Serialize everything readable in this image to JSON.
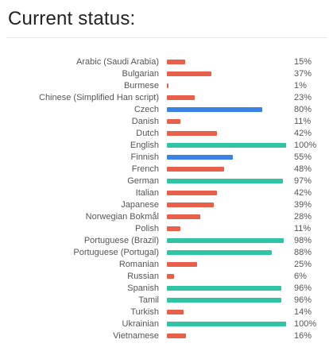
{
  "status": {
    "title": "Current status:",
    "colors": {
      "low": "#e8604a",
      "mid": "#3b82e6",
      "high": "#2ec4a4"
    },
    "languages": [
      {
        "name": "Arabic (Saudi Arabia)",
        "percent": 15,
        "label": "15%"
      },
      {
        "name": "Bulgarian",
        "percent": 37,
        "label": "37%"
      },
      {
        "name": "Burmese",
        "percent": 1,
        "label": "1%"
      },
      {
        "name": "Chinese (Simplified Han script)",
        "percent": 23,
        "label": "23%"
      },
      {
        "name": "Czech",
        "percent": 80,
        "label": "80%"
      },
      {
        "name": "Danish",
        "percent": 11,
        "label": "11%"
      },
      {
        "name": "Dutch",
        "percent": 42,
        "label": "42%"
      },
      {
        "name": "English",
        "percent": 100,
        "label": "100%"
      },
      {
        "name": "Finnish",
        "percent": 55,
        "label": "55%"
      },
      {
        "name": "French",
        "percent": 48,
        "label": "48%"
      },
      {
        "name": "German",
        "percent": 97,
        "label": "97%"
      },
      {
        "name": "Italian",
        "percent": 42,
        "label": "42%"
      },
      {
        "name": "Japanese",
        "percent": 39,
        "label": "39%"
      },
      {
        "name": "Norwegian Bokmål",
        "percent": 28,
        "label": "28%"
      },
      {
        "name": "Polish",
        "percent": 11,
        "label": "11%"
      },
      {
        "name": "Portuguese (Brazil)",
        "percent": 98,
        "label": "98%"
      },
      {
        "name": "Portuguese (Portugal)",
        "percent": 88,
        "label": "88%"
      },
      {
        "name": "Romanian",
        "percent": 25,
        "label": "25%"
      },
      {
        "name": "Russian",
        "percent": 6,
        "label": "6%"
      },
      {
        "name": "Spanish",
        "percent": 96,
        "label": "96%"
      },
      {
        "name": "Tamil",
        "percent": 96,
        "label": "96%"
      },
      {
        "name": "Turkish",
        "percent": 14,
        "label": "14%"
      },
      {
        "name": "Ukrainian",
        "percent": 100,
        "label": "100%"
      },
      {
        "name": "Vietnamese",
        "percent": 16,
        "label": "16%"
      }
    ]
  }
}
